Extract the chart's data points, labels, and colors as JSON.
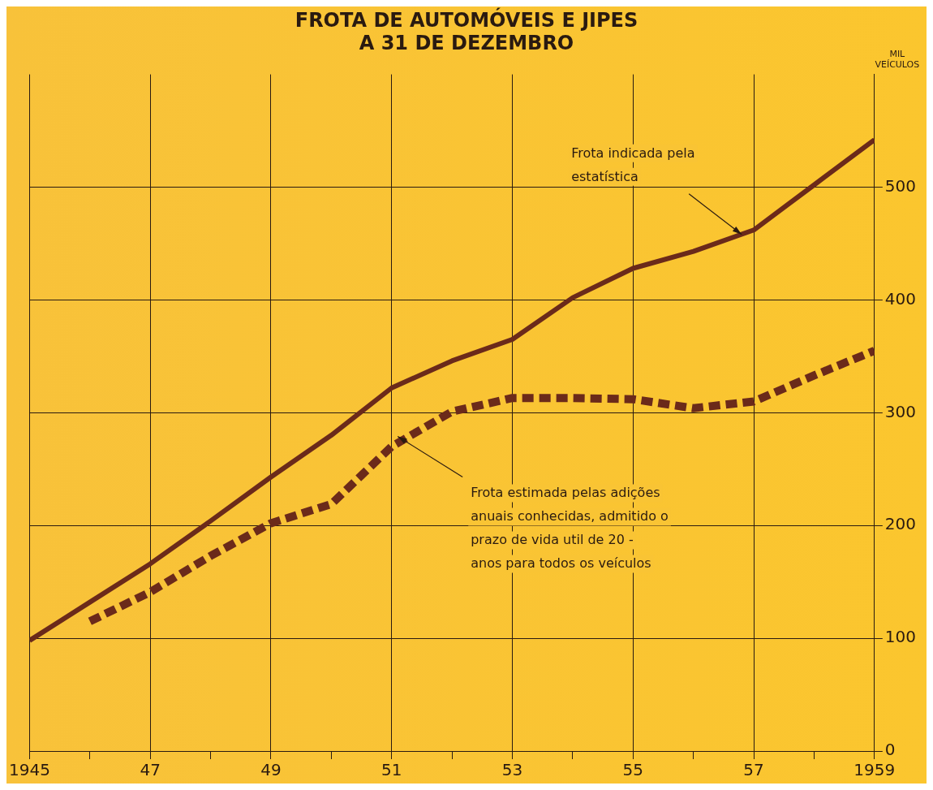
{
  "chart_data": {
    "type": "line",
    "title": "FROTA DE AUTOMÓVEIS E JIPES\nA 31 DE DEZEMBRO",
    "ylabel": "MIL\nVEÍCULOS",
    "xlim": [
      1945,
      1959
    ],
    "xticks": [
      {
        "value": 1945,
        "label": "1945"
      },
      {
        "value": 1946,
        "label": null
      },
      {
        "value": 1947,
        "label": "47"
      },
      {
        "value": 1948,
        "label": null
      },
      {
        "value": 1949,
        "label": "49"
      },
      {
        "value": 1950,
        "label": null
      },
      {
        "value": 1951,
        "label": "51"
      },
      {
        "value": 1952,
        "label": null
      },
      {
        "value": 1953,
        "label": "53"
      },
      {
        "value": 1954,
        "label": null
      },
      {
        "value": 1955,
        "label": "55"
      },
      {
        "value": 1956,
        "label": null
      },
      {
        "value": 1957,
        "label": "57"
      },
      {
        "value": 1958,
        "label": null
      },
      {
        "value": 1959,
        "label": "1959"
      }
    ],
    "ylim": [
      0,
      600
    ],
    "yticks": [
      0,
      100,
      200,
      300,
      400,
      500
    ],
    "grid": true,
    "legend": false,
    "series": [
      {
        "color": "#6b2a1a",
        "line_style": "solid",
        "x": [
          1945,
          1946,
          1947,
          1948,
          1949,
          1950,
          1951,
          1952,
          1953,
          1954,
          1955,
          1956,
          1957,
          1958,
          1959
        ],
        "values": [
          98,
          132,
          166,
          204,
          243,
          280,
          322,
          346,
          365,
          402,
          428,
          443,
          462,
          502,
          542
        ]
      },
      {
        "color": "#6b2a1a",
        "line_style": "dashed",
        "x": [
          1946,
          1947,
          1948,
          1949,
          1950,
          1951,
          1952,
          1953,
          1954,
          1955,
          1956,
          1957,
          1958,
          1959
        ],
        "values": [
          115,
          141,
          173,
          202,
          219,
          270,
          301,
          313,
          313,
          312,
          304,
          310,
          333,
          355
        ]
      }
    ],
    "annotations": [
      {
        "text": "Frota indicada pela\nestatística",
        "x": 1956.8,
        "y": 458
      },
      {
        "text": "Frota estimada pelas adições\nanuais conhecidas, admitido o\nprazo de vida util de 20 -\nanos para todos os veículos",
        "x": 1951.1,
        "y": 279
      }
    ]
  }
}
